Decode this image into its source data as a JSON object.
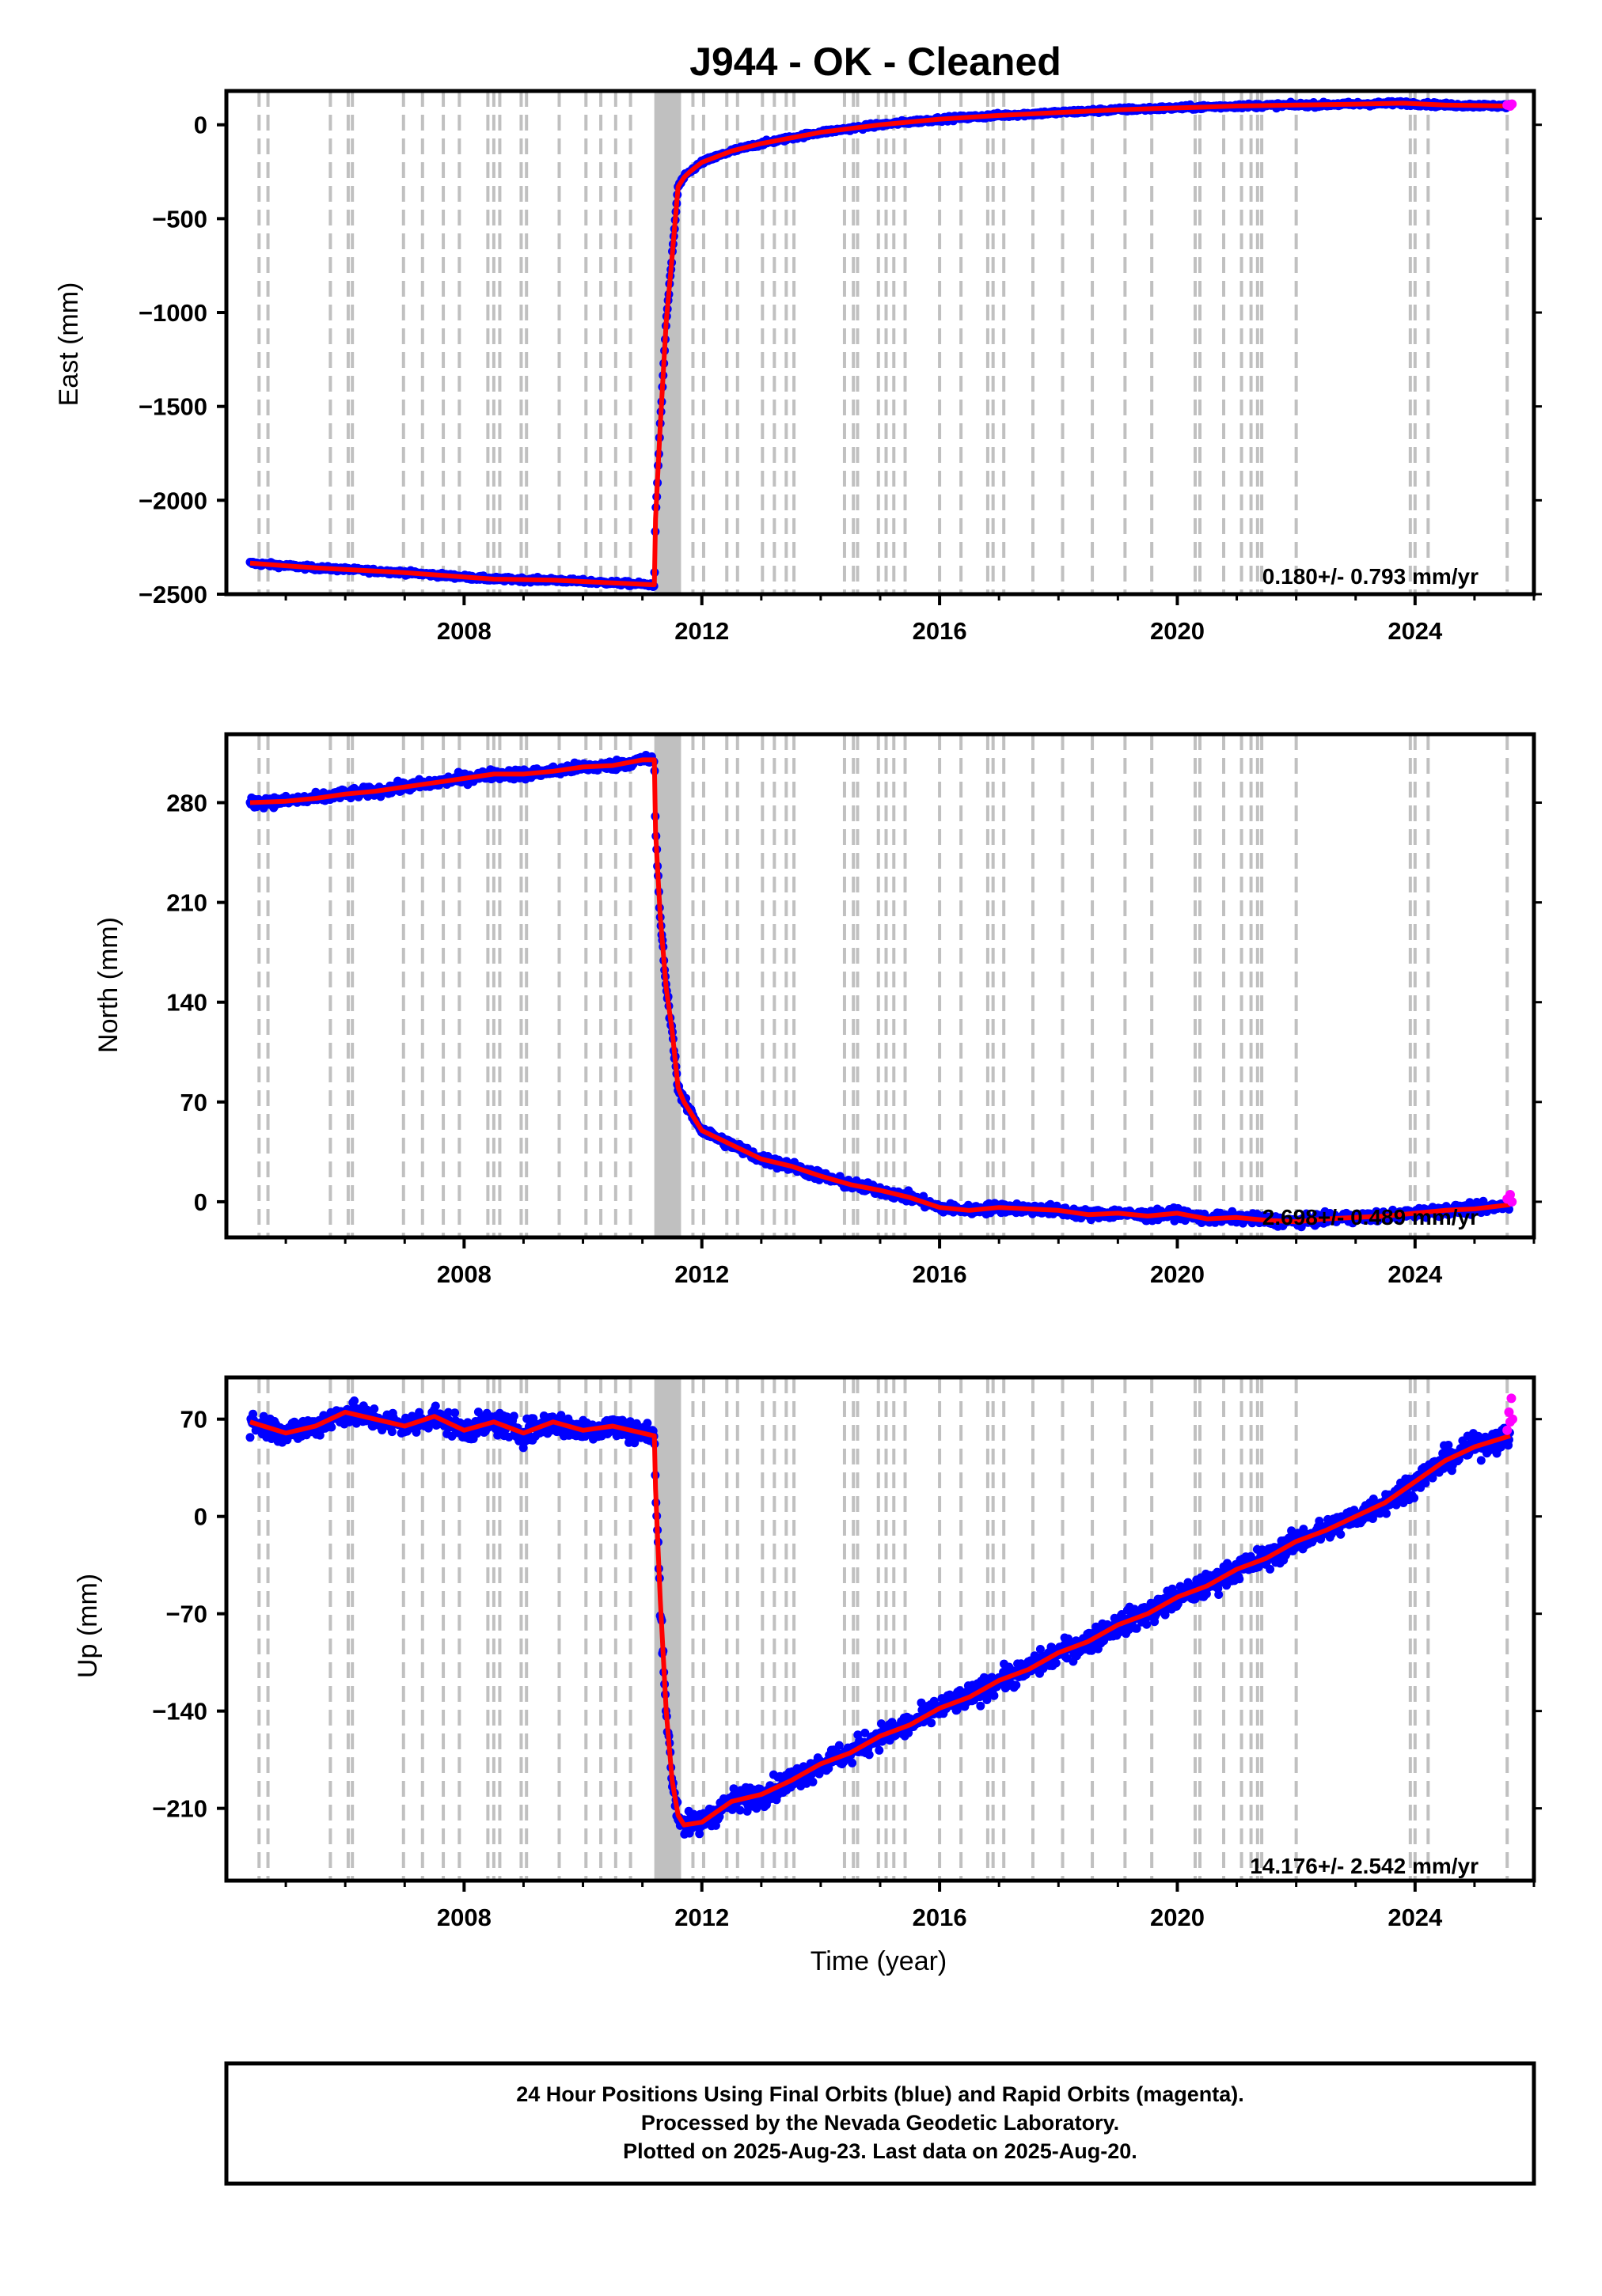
{
  "title": "J944  - OK - Cleaned",
  "xlabel": "Time (year)",
  "x_tick_labels": [
    "2008",
    "2012",
    "2016",
    "2020",
    "2024"
  ],
  "footer": {
    "line1": "24 Hour Positions Using Final Orbits (blue) and Rapid Orbits (magenta).",
    "line2": "Processed by the Nevada Geodetic Laboratory.",
    "line3": "Plotted on 2025-Aug-23. Last data on 2025-Aug-20."
  },
  "colors": {
    "final_orbits": "#0000ff",
    "rapid_orbits": "#ff00ff",
    "trend": "#ff0000",
    "event_lines": "#c0c0c0"
  },
  "chart_data": [
    {
      "type": "scatter",
      "ylabel": "East (mm)",
      "rate_label": "0.180+/- 0.793 mm/yr",
      "xlim": [
        2004.0,
        2026.0
      ],
      "ylim": [
        -2500,
        180
      ],
      "yticks": [
        0,
        -500,
        -1000,
        -1500,
        -2000,
        -2500
      ],
      "y_tick_labels": [
        "0",
        "−500",
        "−1000",
        "−1500",
        "−2000",
        "−2500"
      ],
      "noise_mm": 8,
      "series": [
        {
          "role": "trend",
          "x": [
            2004.4,
            2005.5,
            2007.0,
            2008.5,
            2009.5,
            2010.5,
            2011.2,
            2011.22,
            2011.3,
            2011.4,
            2011.5,
            2011.6,
            2011.7,
            2011.8,
            2012.0,
            2012.5,
            2013.0,
            2014.0,
            2015.0,
            2016.0,
            2017.0,
            2018.0,
            2019.0,
            2020.0,
            2021.0,
            2022.0,
            2023.0,
            2023.8,
            2024.5,
            2025.6
          ],
          "y": [
            -2335,
            -2360,
            -2385,
            -2420,
            -2425,
            -2440,
            -2450,
            -2100,
            -1600,
            -1050,
            -700,
            -330,
            -280,
            -250,
            -200,
            -140,
            -100,
            -40,
            0,
            30,
            50,
            65,
            80,
            90,
            100,
            105,
            110,
            115,
            105,
            100
          ]
        }
      ],
      "rapid_points": [
        {
          "x": 2025.55,
          "y": 105
        },
        {
          "x": 2025.6,
          "y": 100
        },
        {
          "x": 2025.63,
          "y": 110
        }
      ]
    },
    {
      "type": "scatter",
      "ylabel": "North (mm)",
      "rate_label": "2.698+/- 0.489 mm/yr",
      "xlim": [
        2004.0,
        2026.0
      ],
      "ylim": [
        -25,
        328
      ],
      "yticks": [
        0,
        70,
        140,
        210,
        280
      ],
      "y_tick_labels": [
        "0",
        "70",
        "140",
        "210",
        "280"
      ],
      "noise_mm": 2.5,
      "series": [
        {
          "role": "trend",
          "x": [
            2004.4,
            2005.0,
            2005.5,
            2006.0,
            2006.5,
            2007.0,
            2007.5,
            2008.0,
            2008.5,
            2009.0,
            2009.5,
            2010.0,
            2010.5,
            2011.0,
            2011.2,
            2011.22,
            2011.3,
            2011.4,
            2011.5,
            2011.6,
            2011.7,
            2012.0,
            2012.5,
            2013.0,
            2013.5,
            2014.0,
            2014.5,
            2015.0,
            2015.5,
            2016.0,
            2016.5,
            2017.0,
            2017.5,
            2018.0,
            2018.5,
            2019.0,
            2019.5,
            2020.0,
            2020.5,
            2021.0,
            2021.5,
            2022.0,
            2022.5,
            2023.0,
            2023.5,
            2024.0,
            2024.5,
            2025.0,
            2025.6
          ],
          "y": [
            280,
            281,
            283,
            286,
            288,
            291,
            294,
            297,
            300,
            300,
            302,
            305,
            306,
            310,
            310,
            260,
            200,
            150,
            120,
            80,
            70,
            50,
            40,
            30,
            25,
            18,
            12,
            8,
            3,
            -4,
            -6,
            -4,
            -5,
            -6,
            -9,
            -8,
            -10,
            -8,
            -12,
            -11,
            -13,
            -14,
            -12,
            -11,
            -10,
            -8,
            -6,
            -5,
            -2
          ]
        }
      ],
      "rapid_points": [
        {
          "x": 2025.55,
          "y": 2
        },
        {
          "x": 2025.6,
          "y": 5
        },
        {
          "x": 2025.63,
          "y": 0
        }
      ]
    },
    {
      "type": "scatter",
      "ylabel": "Up (mm)",
      "rate_label": "14.176+/- 2.542 mm/yr",
      "xlim": [
        2004.0,
        2026.0
      ],
      "ylim": [
        -262,
        100
      ],
      "yticks": [
        70,
        0,
        -70,
        -140,
        -210
      ],
      "y_tick_labels": [
        "70",
        "0",
        "−70",
        "−140",
        "−210"
      ],
      "noise_mm": 6,
      "series": [
        {
          "role": "trend",
          "x": [
            2004.4,
            2005.0,
            2005.5,
            2006.0,
            2006.5,
            2007.0,
            2007.5,
            2008.0,
            2008.5,
            2009.0,
            2009.5,
            2010.0,
            2010.5,
            2011.0,
            2011.2,
            2011.22,
            2011.3,
            2011.4,
            2011.5,
            2011.6,
            2011.7,
            2012.0,
            2012.5,
            2013.0,
            2013.5,
            2014.0,
            2014.5,
            2015.0,
            2015.5,
            2016.0,
            2016.5,
            2017.0,
            2017.5,
            2018.0,
            2018.5,
            2019.0,
            2019.5,
            2020.0,
            2020.5,
            2021.0,
            2021.5,
            2022.0,
            2022.5,
            2023.0,
            2023.5,
            2024.0,
            2024.5,
            2025.0,
            2025.6
          ],
          "y": [
            68,
            60,
            65,
            75,
            70,
            65,
            72,
            62,
            68,
            60,
            68,
            62,
            65,
            60,
            58,
            20,
            -60,
            -140,
            -190,
            -215,
            -222,
            -220,
            -205,
            -200,
            -190,
            -178,
            -170,
            -158,
            -150,
            -138,
            -130,
            -118,
            -110,
            -98,
            -90,
            -78,
            -70,
            -58,
            -50,
            -38,
            -30,
            -18,
            -10,
            0,
            10,
            25,
            40,
            50,
            58
          ]
        }
      ],
      "rapid_points": [
        {
          "x": 2025.55,
          "y": 62
        },
        {
          "x": 2025.58,
          "y": 75
        },
        {
          "x": 2025.6,
          "y": 68
        },
        {
          "x": 2025.62,
          "y": 85
        },
        {
          "x": 2025.64,
          "y": 70
        }
      ]
    }
  ],
  "event_lines": {
    "dashed_x": [
      2004.55,
      2004.7,
      2005.75,
      2006.05,
      2006.12,
      2006.98,
      2007.3,
      2007.65,
      2007.92,
      2008.4,
      2008.5,
      2008.6,
      2008.96,
      2009.05,
      2009.6,
      2010.05,
      2010.3,
      2010.55,
      2010.8,
      2011.85,
      2012.03,
      2012.42,
      2012.6,
      2013.02,
      2013.22,
      2013.42,
      2013.55,
      2014.4,
      2014.55,
      2014.62,
      2014.97,
      2015.1,
      2015.23,
      2015.42,
      2016.0,
      2016.36,
      2016.81,
      2016.9,
      2017.08,
      2017.57,
      2018.07,
      2018.57,
      2019.12,
      2019.57,
      2020.3,
      2020.38,
      2020.78,
      2021.08,
      2021.24,
      2021.35,
      2021.42,
      2022.0,
      2023.92,
      2024.0,
      2024.22,
      2025.55
    ],
    "dense_band": [
      2011.2,
      2011.65
    ]
  }
}
